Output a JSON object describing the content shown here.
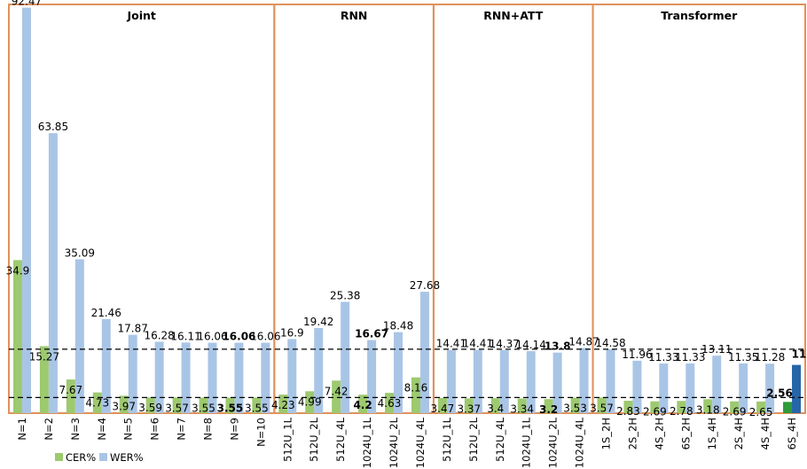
{
  "chart_data": {
    "type": "bar",
    "legend_position": "bottom-left",
    "ylim": [
      0,
      95
    ],
    "grid": false,
    "groups": [
      {
        "title": "Joint",
        "start": 0,
        "count": 10
      },
      {
        "title": "RNN",
        "start": 10,
        "count": 6
      },
      {
        "title": "RNN+ATT",
        "start": 16,
        "count": 6
      },
      {
        "title": "Transformer",
        "start": 22,
        "count": 8
      }
    ],
    "categories": [
      "N=1",
      "N=2",
      "N=3",
      "N=4",
      "N=5",
      "N=6",
      "N=7",
      "N=8",
      "N=9",
      "N=10",
      "512U_1L",
      "512U_2L",
      "512U_4L",
      "1024U_1L",
      "1024U_2L",
      "1024U_4L",
      "512U_1L",
      "512U_2L",
      "512U_4L",
      "1024U_1L",
      "1024U_2L",
      "1024U_4L",
      "1S_2H",
      "2S_2H",
      "4S_2H",
      "6S_2H",
      "1S_4H",
      "2S_4H",
      "4S_4H",
      "6S_4H"
    ],
    "series": [
      {
        "name": "CER%",
        "color": "#9dc96f",
        "values": [
          34.9,
          15.27,
          7.67,
          4.73,
          3.97,
          3.59,
          3.57,
          3.55,
          3.55,
          3.55,
          4.23,
          4.99,
          7.42,
          4.2,
          4.63,
          8.16,
          3.47,
          3.37,
          3.4,
          3.34,
          3.2,
          3.53,
          3.57,
          2.83,
          2.69,
          2.78,
          3.18,
          2.69,
          2.65,
          2.56
        ],
        "labels": [
          "34.9",
          "15.27",
          "7.67",
          "4.73",
          "3.97",
          "3.59",
          "3.57",
          "3.55",
          "3.55",
          "3.55",
          "4.23",
          "4.99",
          "7.42",
          "4.2",
          "4.63",
          "8.16",
          "3.47",
          "3.37",
          "3.4",
          "3.34",
          "3.2",
          "3.53",
          "3.57",
          "2.83",
          "2.69",
          "2.78",
          "3.18",
          "2.69",
          "2.65",
          "2.56"
        ]
      },
      {
        "name": "WER%",
        "color": "#a9c5e6",
        "values": [
          92.47,
          63.85,
          35.09,
          21.46,
          17.87,
          16.28,
          16.11,
          16.06,
          16.06,
          16.06,
          16.9,
          19.42,
          25.38,
          16.67,
          18.48,
          27.68,
          14.41,
          14.41,
          14.37,
          14.14,
          13.8,
          14.87,
          14.58,
          11.96,
          11.33,
          11.33,
          13.11,
          11.35,
          11.28,
          11
        ],
        "labels": [
          "92.47",
          "63.85",
          "35.09",
          "21.46",
          "17.87",
          "16.28",
          "16.11",
          "16.06",
          "16.06",
          "16.06",
          "16.9",
          "19.42",
          "25.38",
          "16.67",
          "18.48",
          "27.68",
          "14.41",
          "14.41",
          "14.37",
          "14.14",
          "13.8",
          "14.87",
          "14.58",
          "11.96",
          "11.33",
          "11.33",
          "13.11",
          "11.35",
          "11.28",
          "11"
        ]
      }
    ],
    "bold_indices": [
      8,
      13,
      20
    ],
    "highlight_index": 29,
    "highlight_colors": {
      "cer": "#2e9a3a",
      "wer": "#2566a8",
      "label": "#e8202a"
    },
    "reference_lines": [
      {
        "value": 14.58,
        "style": "dashed",
        "color": "#000000"
      },
      {
        "value": 3.57,
        "style": "dashed",
        "color": "#000000"
      }
    ],
    "group_border_color": "#e0915a"
  }
}
